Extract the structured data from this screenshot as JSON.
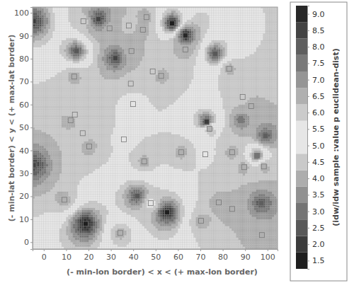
{
  "chart_data": {
    "type": "idw",
    "x_label": "(- min-lon border) < x < (+ max-lon border)",
    "y_label": "(- min-lat border) < y < (+ max-lat border)",
    "xlim": [
      -5,
      104.5
    ],
    "ylim": [
      -3,
      102.5
    ],
    "xticks": [
      0,
      10,
      20,
      30,
      40,
      50,
      60,
      70,
      80,
      90,
      100
    ],
    "yticks": [
      0,
      10,
      20,
      30,
      40,
      50,
      60,
      70,
      80,
      90,
      100
    ],
    "x": [
      -4.5,
      24.4,
      29.4,
      38.0,
      45.9,
      44.3,
      57.3,
      63.3,
      63.3,
      17.7,
      14.6,
      39.2,
      32.0,
      76.6,
      13.6,
      38.9,
      48.7,
      52.5,
      82.9,
      88.9,
      92.7,
      99.1,
      88.0,
      72.8,
      74.1,
      13.9,
      12.0,
      17.4,
      20.3,
      35.8,
      39.9,
      -4.5,
      44.9,
      61.4,
      72.2,
      84.2,
      89.6,
      95.3,
      98.4,
      41.8,
      47.8,
      55.1,
      78.2,
      84.2,
      97.2,
      9.2,
      18.7,
      34.2,
      70.3,
      97.5
    ],
    "y": [
      96.3,
      97.2,
      93.2,
      94.4,
      98.1,
      92.6,
      95.4,
      90.1,
      84.0,
      96.3,
      83.3,
      83.3,
      80.2,
      82.1,
      72.2,
      69.1,
      74.4,
      72.5,
      75.6,
      63.3,
      59.3,
      46.3,
      53.1,
      52.5,
      49.4,
      55.6,
      53.1,
      47.5,
      41.7,
      44.8,
      60.2,
      33.6,
      35.2,
      39.2,
      38.3,
      39.2,
      32.7,
      37.7,
      33.0,
      20.1,
      17.0,
      13.0,
      17.3,
      14.5,
      17.0,
      18.5,
      8.0,
      4.0,
      9.3,
      3.1
    ],
    "values": [
      2.0,
      8.5,
      6.5,
      6.0,
      6.5,
      6.5,
      1.5,
      9.0,
      6.5,
      6.0,
      2.5,
      6.5,
      8.5,
      2.5,
      6.5,
      6.0,
      6.0,
      6.5,
      6.5,
      6.0,
      6.5,
      8.0,
      7.5,
      2.0,
      6.5,
      6.0,
      6.5,
      6.0,
      6.5,
      5.5,
      5.0,
      8.5,
      6.5,
      6.5,
      5.5,
      6.5,
      6.5,
      3.0,
      6.5,
      2.5,
      5.0,
      1.5,
      6.5,
      6.5,
      8.0,
      6.5,
      1.5,
      6.5,
      6.5,
      6.5
    ],
    "colorbar": {
      "title": "(idw/idw sample :value p euclidean-dist)",
      "range": [
        1.25,
        9.25
      ],
      "ticks": [
        1.5,
        {
          "value": 2,
          "label": "2.0"
        },
        2.5,
        {
          "value": 3,
          "label": "3.0"
        },
        3.5,
        {
          "value": 4,
          "label": "4.0"
        },
        4.5,
        {
          "value": 5,
          "label": "5.0"
        },
        5.5,
        {
          "value": 6,
          "label": "6.0"
        },
        6.5,
        {
          "value": 7,
          "label": "7.0"
        },
        7.5,
        {
          "value": 8,
          "label": "8.0"
        },
        8.5,
        {
          "value": 9,
          "label": "9.0"
        }
      ]
    },
    "grid": true
  }
}
